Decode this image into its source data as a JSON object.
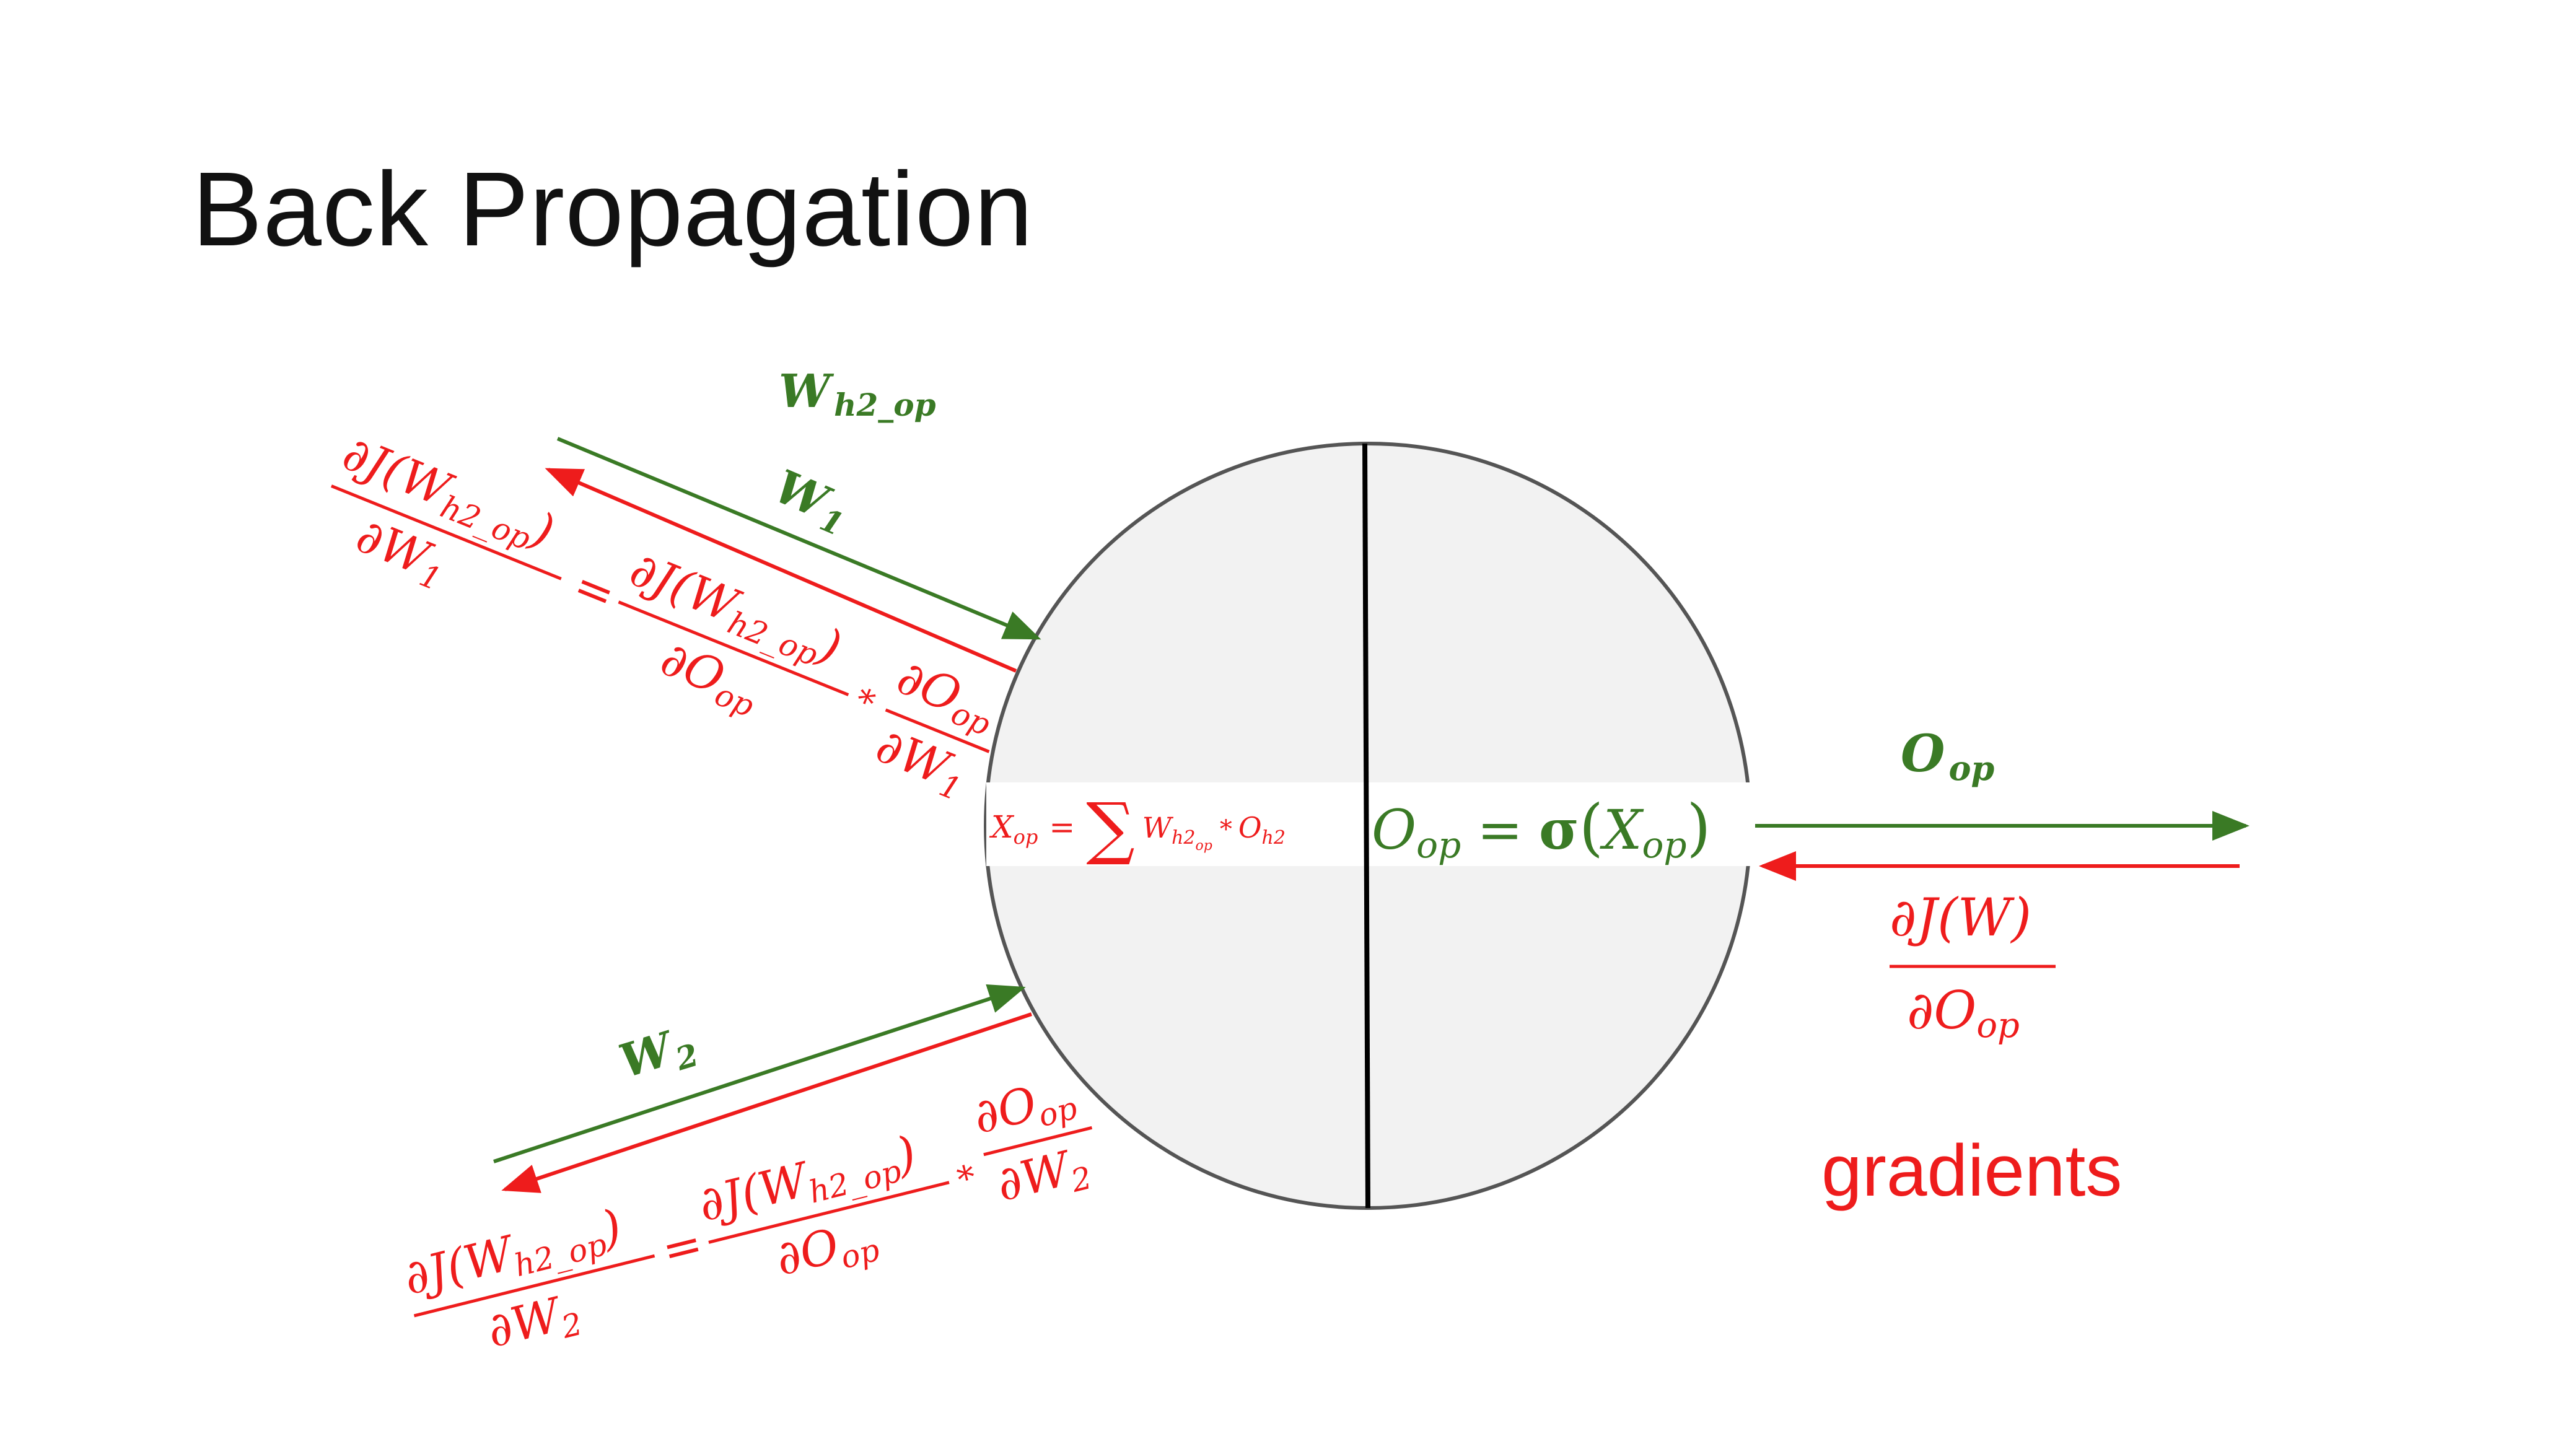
{
  "slide": {
    "title": "Back Propagation"
  },
  "neuron": {
    "left_formula": {
      "X": "X",
      "X_sub": "op",
      "eq": "=",
      "sum": "∑",
      "W": "W",
      "W_sub": "h2",
      "W_subsub": "op",
      "mul": "*",
      "O": "O",
      "O_sub": "h2"
    },
    "right_formula": {
      "O": "O",
      "O_sub": "op",
      "eq": "=",
      "sigma": "σ",
      "lparen": "(",
      "X": "X",
      "X_sub": "op",
      "rparen": ")"
    }
  },
  "labels": {
    "w_h2_op": {
      "main": "W",
      "sub": "h2_op"
    },
    "w1": {
      "main": "W",
      "sub": "1"
    },
    "w2": {
      "main": "W",
      "sub": "2"
    },
    "o_op": {
      "main": "O",
      "sub": "op"
    },
    "gradients": "gradients"
  },
  "gradients": {
    "output": {
      "num": "∂J(W)",
      "den_d": "∂O",
      "den_sub": "op"
    },
    "top": {
      "lhs_num": "∂J(W",
      "lhs_num_sub": "h2_op",
      "lhs_num_close": ")",
      "lhs_den": "∂W",
      "lhs_den_sub": "1",
      "eq": "=",
      "rhs1_num": "∂J(W",
      "rhs1_num_sub": "h2_op",
      "rhs1_num_close": ")",
      "rhs1_den": "∂O",
      "rhs1_den_sub": "op",
      "mul": "*",
      "rhs2_num": "∂O",
      "rhs2_num_sub": "op",
      "rhs2_den": "∂W",
      "rhs2_den_sub": "1"
    },
    "bottom": {
      "lhs_num": "∂J(W",
      "lhs_num_sub": "h2_op",
      "lhs_num_close": ")",
      "lhs_den": "∂W",
      "lhs_den_sub": "2",
      "eq": "=",
      "rhs1_num": "∂J(W",
      "rhs1_num_sub": "h2_op",
      "rhs1_num_close": ")",
      "rhs1_den": "∂O",
      "rhs1_den_sub": "op",
      "mul": "*",
      "rhs2_num": "∂O",
      "rhs2_num_sub": "op",
      "rhs2_den": "∂W",
      "rhs2_den_sub": "2"
    }
  },
  "colors": {
    "forward": "#3a7a25",
    "backward": "#ee1c1c",
    "neuron_fill": "#f2f2f2",
    "neuron_stroke": "#555555",
    "divider": "#000000"
  }
}
